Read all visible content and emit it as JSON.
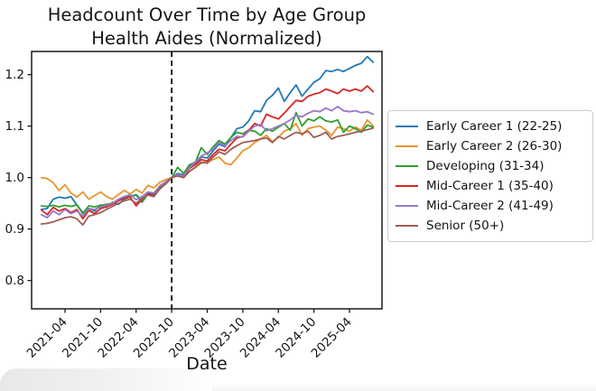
{
  "figure": {
    "title_line1": "Headcount Over Time by Age Group",
    "title_line2": "Health Aides (Normalized)",
    "xlabel": "Date"
  },
  "chart_data": {
    "type": "line",
    "title": "Headcount Over Time by Age Group",
    "subtitle": "Health Aides (Normalized)",
    "xlabel": "Date",
    "ylabel": "",
    "grid": false,
    "legend_position": "right",
    "ylim": [
      0.745,
      1.245
    ],
    "y_ticks": [
      0.8,
      0.9,
      1.0,
      1.1,
      1.2
    ],
    "x": [
      "2020-12",
      "2021-01",
      "2021-02",
      "2021-03",
      "2021-04",
      "2021-05",
      "2021-06",
      "2021-07",
      "2021-08",
      "2021-09",
      "2021-10",
      "2021-11",
      "2021-12",
      "2022-01",
      "2022-02",
      "2022-03",
      "2022-04",
      "2022-05",
      "2022-06",
      "2022-07",
      "2022-08",
      "2022-09",
      "2022-10",
      "2022-11",
      "2022-12",
      "2023-01",
      "2023-02",
      "2023-03",
      "2023-04",
      "2023-05",
      "2023-06",
      "2023-07",
      "2023-08",
      "2023-09",
      "2023-10",
      "2023-11",
      "2023-12",
      "2024-01",
      "2024-02",
      "2024-03",
      "2024-04",
      "2024-05",
      "2024-06",
      "2024-07",
      "2024-08",
      "2024-09",
      "2024-10",
      "2024-11",
      "2024-12",
      "2025-01",
      "2025-02",
      "2025-03",
      "2025-04",
      "2025-05",
      "2025-06",
      "2025-07",
      "2025-08"
    ],
    "x_tick_labels": [
      "2021-04",
      "2021-10",
      "2022-04",
      "2022-10",
      "2023-04",
      "2023-10",
      "2024-04",
      "2024-10",
      "2025-04"
    ],
    "x_tick_indices": [
      4,
      10,
      16,
      22,
      28,
      34,
      40,
      46,
      52
    ],
    "vline": {
      "x": "2022-10",
      "index": 22,
      "style": "dashed",
      "color": "#000000"
    },
    "series": [
      {
        "name": "Early Career 1 (22-25)",
        "color": "#2279b5",
        "values": [
          0.938,
          0.94,
          0.958,
          0.962,
          0.96,
          0.963,
          0.947,
          0.932,
          0.94,
          0.935,
          0.947,
          0.942,
          0.952,
          0.948,
          0.958,
          0.963,
          0.967,
          0.955,
          0.97,
          0.968,
          0.982,
          0.991,
          1.0,
          1.008,
          1.005,
          1.022,
          1.028,
          1.04,
          1.038,
          1.052,
          1.065,
          1.06,
          1.078,
          1.095,
          1.098,
          1.11,
          1.13,
          1.128,
          1.15,
          1.16,
          1.174,
          1.148,
          1.165,
          1.18,
          1.158,
          1.172,
          1.185,
          1.192,
          1.208,
          1.206,
          1.21,
          1.206,
          1.212,
          1.218,
          1.222,
          1.235,
          1.224
        ]
      },
      {
        "name": "Early Career 2 (26-30)",
        "color": "#e8952e",
        "values": [
          1.0,
          0.998,
          0.99,
          0.975,
          0.986,
          0.97,
          0.962,
          0.972,
          0.958,
          0.965,
          0.972,
          0.963,
          0.958,
          0.967,
          0.975,
          0.968,
          0.977,
          0.97,
          0.985,
          0.98,
          0.991,
          0.996,
          1.0,
          1.004,
          1.0,
          1.012,
          1.02,
          1.028,
          1.03,
          1.035,
          1.04,
          1.028,
          1.025,
          1.038,
          1.052,
          1.058,
          1.068,
          1.075,
          1.082,
          1.07,
          1.078,
          1.09,
          1.095,
          1.105,
          1.082,
          1.095,
          1.098,
          1.1,
          1.092,
          1.082,
          1.098,
          1.095,
          1.09,
          1.098,
          1.092,
          1.112,
          1.1
        ]
      },
      {
        "name": "Developing (31-34)",
        "color": "#2ca02c",
        "values": [
          0.945,
          0.944,
          0.946,
          0.943,
          0.946,
          0.944,
          0.947,
          0.93,
          0.945,
          0.943,
          0.946,
          0.948,
          0.95,
          0.957,
          0.962,
          0.964,
          0.966,
          0.952,
          0.968,
          0.965,
          0.98,
          0.99,
          1.0,
          1.02,
          1.008,
          1.025,
          1.03,
          1.058,
          1.045,
          1.06,
          1.072,
          1.065,
          1.078,
          1.088,
          1.085,
          1.092,
          1.09,
          1.082,
          1.095,
          1.09,
          1.098,
          1.105,
          1.092,
          1.126,
          1.1,
          1.114,
          1.11,
          1.118,
          1.11,
          1.108,
          1.112,
          1.088,
          1.1,
          1.095,
          1.088,
          1.102,
          1.098
        ]
      },
      {
        "name": "Mid-Career 1 (35-40)",
        "color": "#d62728",
        "values": [
          0.937,
          0.928,
          0.942,
          0.935,
          0.94,
          0.932,
          0.938,
          0.92,
          0.936,
          0.93,
          0.94,
          0.943,
          0.948,
          0.955,
          0.96,
          0.962,
          0.945,
          0.958,
          0.968,
          0.965,
          0.978,
          0.988,
          1.0,
          1.005,
          1.002,
          1.018,
          1.025,
          1.035,
          1.032,
          1.045,
          1.055,
          1.052,
          1.065,
          1.077,
          1.08,
          1.092,
          1.105,
          1.1,
          1.123,
          1.118,
          1.114,
          1.125,
          1.138,
          1.15,
          1.148,
          1.158,
          1.162,
          1.165,
          1.172,
          1.168,
          1.163,
          1.172,
          1.168,
          1.172,
          1.168,
          1.178,
          1.167
        ]
      },
      {
        "name": "Mid-Career 2 (41-49)",
        "color": "#9878c8",
        "values": [
          0.928,
          0.922,
          0.935,
          0.928,
          0.938,
          0.93,
          0.935,
          0.925,
          0.94,
          0.938,
          0.943,
          0.946,
          0.95,
          0.958,
          0.963,
          0.967,
          0.957,
          0.963,
          0.972,
          0.97,
          0.984,
          0.992,
          1.0,
          1.006,
          1.003,
          1.02,
          1.03,
          1.042,
          1.048,
          1.055,
          1.068,
          1.062,
          1.072,
          1.08,
          1.079,
          1.09,
          1.1,
          1.103,
          1.091,
          1.095,
          1.1,
          1.105,
          1.112,
          1.121,
          1.118,
          1.125,
          1.13,
          1.128,
          1.135,
          1.13,
          1.138,
          1.13,
          1.128,
          1.13,
          1.126,
          1.128,
          1.123
        ]
      },
      {
        "name": "Senior (50+)",
        "color": "#9d5e55",
        "values": [
          0.91,
          0.911,
          0.914,
          0.918,
          0.922,
          0.924,
          0.92,
          0.908,
          0.925,
          0.928,
          0.932,
          0.938,
          0.944,
          0.95,
          0.955,
          0.958,
          0.95,
          0.96,
          0.966,
          0.963,
          0.978,
          0.988,
          1.0,
          1.003,
          1.0,
          1.012,
          1.02,
          1.03,
          1.028,
          1.04,
          1.05,
          1.045,
          1.055,
          1.062,
          1.068,
          1.07,
          1.072,
          1.075,
          1.077,
          1.068,
          1.08,
          1.075,
          1.082,
          1.088,
          1.085,
          1.09,
          1.078,
          1.082,
          1.088,
          1.075,
          1.08,
          1.082,
          1.085,
          1.088,
          1.09,
          1.093,
          1.096
        ]
      }
    ]
  }
}
